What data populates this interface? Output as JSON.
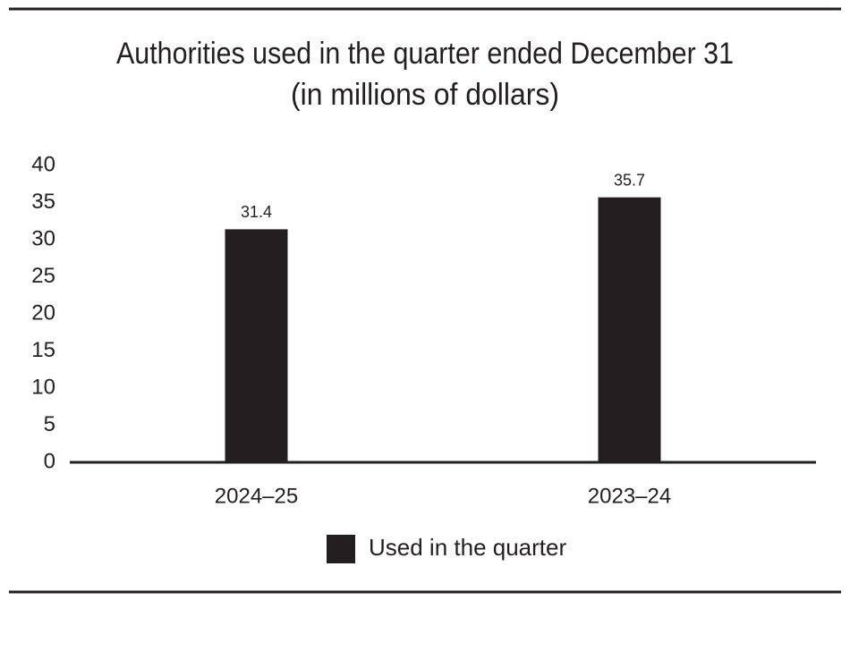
{
  "chart_data": {
    "type": "bar",
    "title": "Authorities used in the quarter ended December 31",
    "subtitle": "(in millions of dollars)",
    "categories": [
      "2024–25",
      "2023–24"
    ],
    "series": [
      {
        "name": "Used in the quarter",
        "color": "#231f20",
        "values": [
          31.4,
          35.7
        ]
      }
    ],
    "ylim": [
      0,
      40
    ],
    "yticks": [
      0,
      5,
      10,
      15,
      20,
      25,
      30,
      35,
      40
    ],
    "grid": false,
    "legend": "bottom"
  }
}
